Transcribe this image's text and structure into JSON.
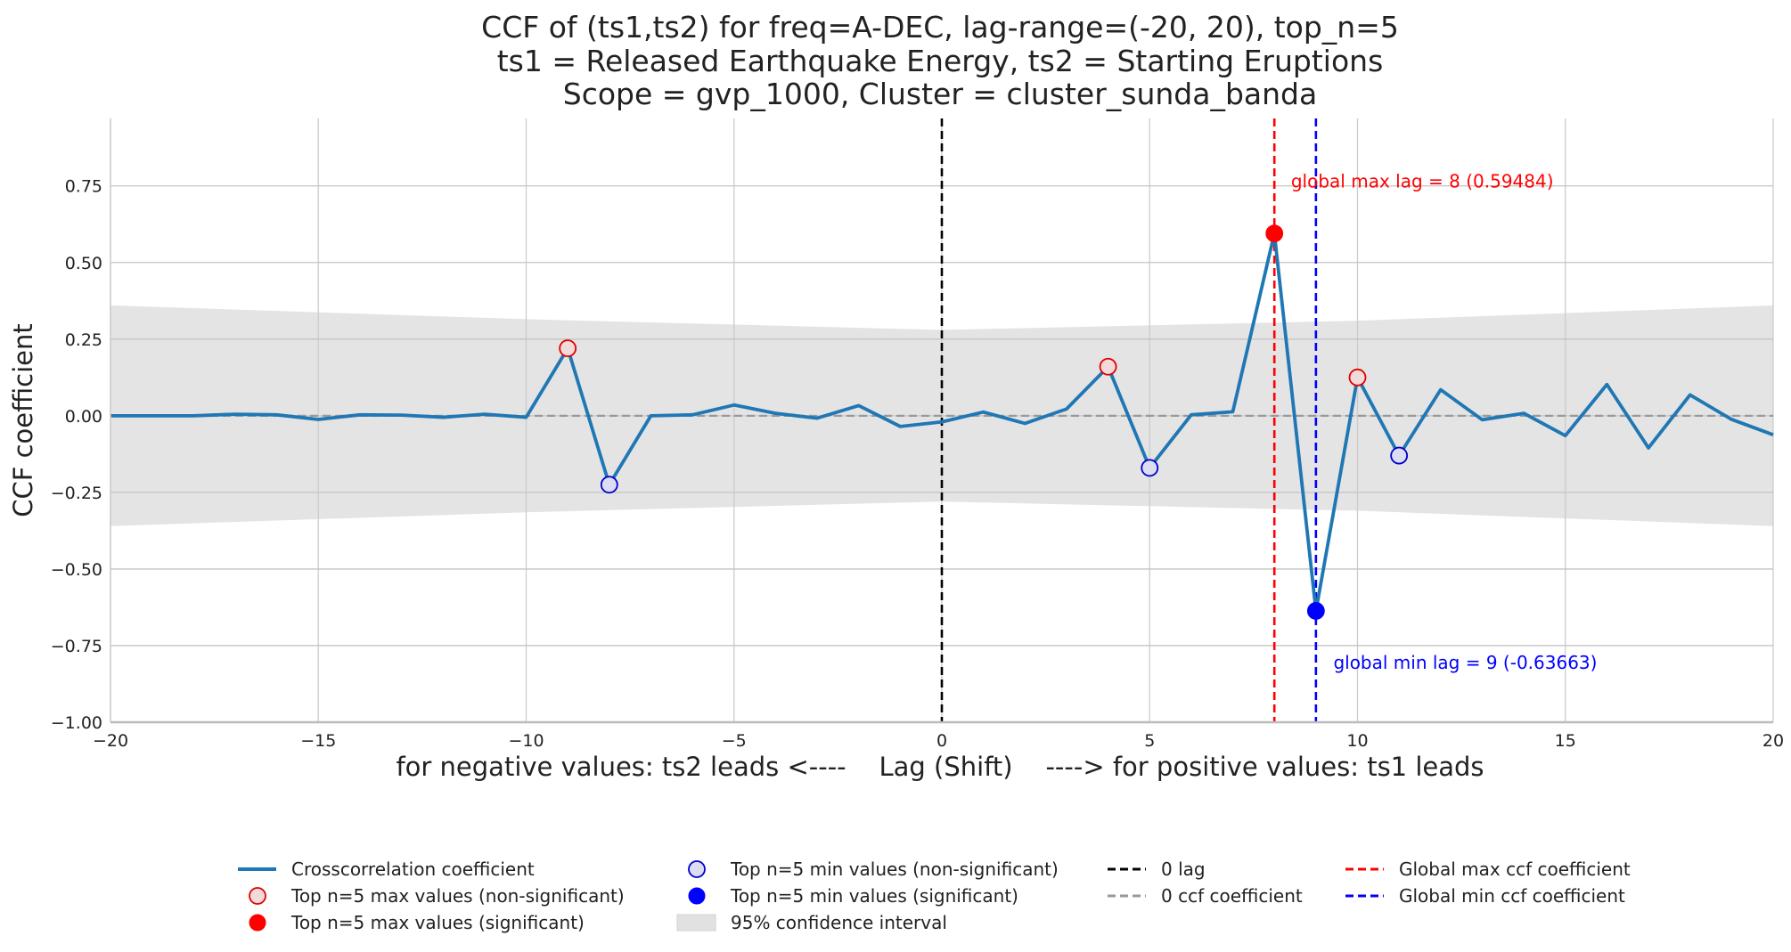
{
  "chart_data": {
    "type": "line",
    "title_lines": [
      "CCF of (ts1,ts2) for freq=A-DEC, lag-range=(-20, 20), top_n=5",
      "ts1 = Released Earthquake Energy, ts2 = Starting Eruptions",
      "Scope = gvp_1000, Cluster = cluster_sunda_banda"
    ],
    "xlabel": "for negative values: ts2 leads <----    Lag (Shift)    ----> for positive values: ts1 leads",
    "ylabel": "CCF coefficient",
    "xlim": [
      -20,
      20
    ],
    "ylim": [
      -1.0,
      0.97
    ],
    "x_ticks": [
      -20,
      -15,
      -10,
      -5,
      0,
      5,
      10,
      15,
      20
    ],
    "x_tick_labels": [
      "−20",
      "−15",
      "−10",
      "−5",
      "0",
      "5",
      "10",
      "15",
      "20"
    ],
    "y_ticks": [
      -1.0,
      -0.75,
      -0.5,
      -0.25,
      0.0,
      0.25,
      0.5,
      0.75
    ],
    "y_tick_labels": [
      "−1.00",
      "−0.75",
      "−0.50",
      "−0.25",
      "0.00",
      "0.25",
      "0.50",
      "0.75"
    ],
    "grid": true,
    "legend_position": "bottom",
    "series": [
      {
        "name": "Crosscorrelation coefficient",
        "color": "#1f77b4",
        "x": [
          -20,
          -19,
          -18,
          -17,
          -16,
          -15,
          -14,
          -13,
          -12,
          -11,
          -10,
          -9,
          -8,
          -7,
          -6,
          -5,
          -4,
          -3,
          -2,
          -1,
          0,
          1,
          2,
          3,
          4,
          5,
          6,
          7,
          8,
          9,
          10,
          11,
          12,
          13,
          14,
          15,
          16,
          17,
          18,
          19,
          20
        ],
        "values": [
          0.0,
          0.0,
          0.0,
          0.005,
          0.003,
          -0.012,
          0.003,
          0.002,
          -0.005,
          0.005,
          -0.005,
          0.22,
          -0.225,
          0.0,
          0.003,
          0.035,
          0.008,
          -0.008,
          0.033,
          -0.035,
          -0.02,
          0.012,
          -0.025,
          0.022,
          0.16,
          -0.17,
          0.003,
          0.013,
          0.59484,
          -0.63663,
          0.125,
          -0.13,
          0.085,
          -0.013,
          0.008,
          -0.065,
          0.102,
          -0.105,
          0.068,
          -0.012,
          -0.062
        ]
      }
    ],
    "confidence_interval": {
      "name": "95% confidence interval",
      "color": "#e4e4e4",
      "x": [
        -20,
        -10,
        0,
        10,
        20
      ],
      "upper": [
        0.36,
        0.315,
        0.28,
        0.31,
        0.36
      ],
      "lower": [
        -0.36,
        -0.315,
        -0.28,
        -0.31,
        -0.36
      ]
    },
    "top_max_nonsignificant": {
      "name": "Top n=5 max values (non-significant)",
      "x": [
        -9,
        4,
        10
      ],
      "values": [
        0.22,
        0.16,
        0.125
      ],
      "color": "#e00000"
    },
    "top_max_significant": {
      "name": "Top n=5 max values (significant)",
      "x": [
        8
      ],
      "values": [
        0.59484
      ],
      "color": "#ff0000"
    },
    "top_min_nonsignificant": {
      "name": "Top n=5 min values (non-significant)",
      "x": [
        -8,
        5,
        11
      ],
      "values": [
        -0.225,
        -0.17,
        -0.13
      ],
      "color": "#0000cc"
    },
    "top_min_significant": {
      "name": "Top n=5 min values (significant)",
      "x": [
        9
      ],
      "values": [
        -0.63663
      ],
      "color": "#0000ff"
    },
    "reference_lines": {
      "zero_lag": {
        "name": "0 lag",
        "x": 0,
        "color": "#000000"
      },
      "zero_ccf": {
        "name": "0 ccf coefficient",
        "y": 0,
        "color": "#999999"
      },
      "global_max": {
        "name": "Global max ccf coefficient",
        "x": 8,
        "color": "#ff0000"
      },
      "global_min": {
        "name": "Global min ccf coefficient",
        "x": 9,
        "color": "#0000ff"
      }
    },
    "annotations": [
      {
        "text": "global max lag = 8 (0.59484)",
        "x": 8.4,
        "y": 0.745,
        "color": "#ff0000"
      },
      {
        "text": "global min lag = 9 (-0.63663)",
        "x": 9.42,
        "y": -0.825,
        "color": "#0000ff"
      }
    ],
    "legend_columns": [
      [
        "Crosscorrelation coefficient",
        "Top n=5 max values (non-significant)",
        "Top n=5 max values (significant)"
      ],
      [
        "Top n=5 min values (non-significant)",
        "Top n=5 min values (significant)",
        "95% confidence interval"
      ],
      [
        "0 lag",
        "0 ccf coefficient"
      ],
      [
        "Global max ccf coefficient",
        "Global min ccf coefficient"
      ]
    ]
  }
}
